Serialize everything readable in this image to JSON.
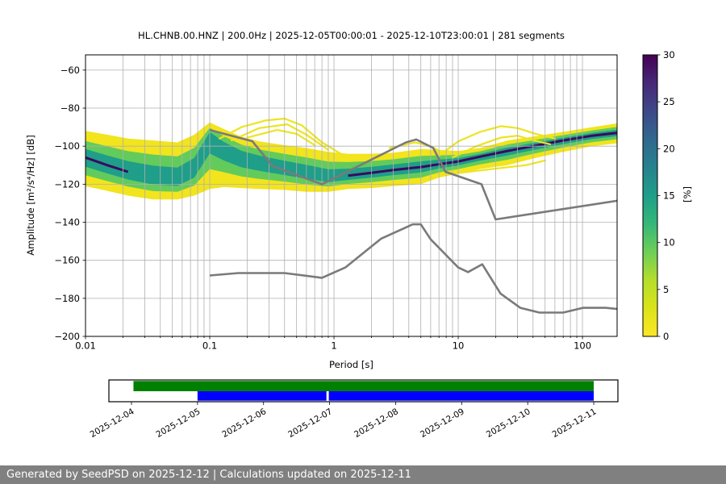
{
  "chart_data": {
    "type": "heatmap",
    "title": "HL.CHNB.00.HNZ | 200.0Hz | 2025-12-05T00:00:01 - 2025-12-10T23:00:01 | 281 segments",
    "xlabel": "Period [s]",
    "ylabel": "Amplitude [m²/s⁴/Hz] [dB]",
    "x_scale": "log",
    "xlim": [
      0.01,
      190
    ],
    "ylim": [
      -200,
      -52
    ],
    "x_ticks": {
      "values": [
        0.01,
        0.1,
        1,
        10,
        100
      ],
      "labels": [
        "0.01",
        "0.1",
        "1",
        "10",
        "100"
      ]
    },
    "y_ticks": [
      -60,
      -80,
      -100,
      -120,
      -140,
      -160,
      -180,
      -200
    ],
    "grid": {
      "show": true,
      "color": "#b0b0b0"
    },
    "colorbar": {
      "label": "[%]",
      "min": 0,
      "max": 30,
      "ticks": [
        0,
        5,
        10,
        15,
        20,
        25,
        30
      ],
      "colormap": "viridis_r",
      "stops": [
        {
          "v": 0,
          "c": "#fde725"
        },
        {
          "v": 3,
          "c": "#dae319"
        },
        {
          "v": 6,
          "c": "#b5de2b"
        },
        {
          "v": 9,
          "c": "#6ece58"
        },
        {
          "v": 12,
          "c": "#35b779"
        },
        {
          "v": 15,
          "c": "#1f9e89"
        },
        {
          "v": 18,
          "c": "#26828e"
        },
        {
          "v": 21,
          "c": "#31688e"
        },
        {
          "v": 24,
          "c": "#3e4989"
        },
        {
          "v": 27,
          "c": "#482878"
        },
        {
          "v": 30,
          "c": "#440154"
        }
      ]
    },
    "ppsd_histogram": {
      "unit": "dB",
      "periods": [
        0.01,
        0.015,
        0.022,
        0.035,
        0.055,
        0.075,
        0.1,
        0.13,
        0.18,
        0.25,
        0.4,
        0.6,
        0.9,
        1.3,
        2,
        3,
        5,
        7,
        10,
        15,
        25,
        40,
        70,
        120,
        190
      ],
      "top_db": [
        -92,
        -94,
        -96,
        -97,
        -98,
        -94,
        -87.5,
        -91,
        -95,
        -97.5,
        -99.5,
        -101,
        -103,
        -104,
        -104,
        -103.5,
        -101.5,
        -102,
        -102.5,
        -101,
        -97,
        -95,
        -92.5,
        -90,
        -88
      ],
      "mode_db": [
        -106,
        -110,
        -113.5,
        -116.5,
        -117.5,
        -112,
        -95,
        -101,
        -106,
        -108.5,
        -111.5,
        -114,
        -116.5,
        -115.5,
        -114,
        -112.5,
        -111,
        -109.5,
        -108,
        -105.5,
        -102.5,
        -100,
        -97,
        -94.5,
        -93
      ],
      "bottom_db": [
        -121,
        -123.5,
        -126,
        -128,
        -128,
        -126,
        -122.5,
        -121.5,
        -122,
        -122.5,
        -123,
        -124,
        -124,
        -122.5,
        -122,
        -121,
        -120,
        -116.5,
        -114.5,
        -112,
        -110,
        -106.5,
        -103,
        -100,
        -98.5
      ],
      "colors": {
        "outer": "#f2e41d",
        "mid": "#62cb5c",
        "inner": "#1f9e89",
        "core": "#3a0a5d"
      },
      "core_segments": [
        [
          0.01,
          0.022
        ],
        [
          1.3,
          190
        ]
      ]
    },
    "excursion_lines": {
      "color": "#ece51f",
      "paths": [
        [
          [
            0.12,
            -96
          ],
          [
            0.18,
            -90
          ],
          [
            0.28,
            -86.5
          ],
          [
            0.4,
            -85.5
          ],
          [
            0.55,
            -89
          ],
          [
            0.8,
            -98
          ],
          [
            1.2,
            -105
          ]
        ],
        [
          [
            0.15,
            -97
          ],
          [
            0.25,
            -90.5
          ],
          [
            0.42,
            -88.5
          ],
          [
            0.6,
            -94
          ],
          [
            0.9,
            -102
          ]
        ],
        [
          [
            0.2,
            -95.5
          ],
          [
            0.35,
            -91.5
          ],
          [
            0.5,
            -93.5
          ],
          [
            0.7,
            -99.5
          ]
        ],
        [
          [
            2.8,
            -101
          ],
          [
            4.5,
            -98
          ],
          [
            6,
            -100
          ],
          [
            7.5,
            -103.5
          ]
        ],
        [
          [
            7,
            -105
          ],
          [
            10,
            -97.5
          ],
          [
            15,
            -92.5
          ],
          [
            22,
            -89.5
          ],
          [
            30,
            -90.5
          ],
          [
            42,
            -93.5
          ],
          [
            60,
            -96
          ]
        ],
        [
          [
            9,
            -106
          ],
          [
            14,
            -100
          ],
          [
            22,
            -95.5
          ],
          [
            30,
            -94.5
          ],
          [
            40,
            -97
          ],
          [
            55,
            -99
          ]
        ],
        [
          [
            9,
            -114.5
          ],
          [
            14,
            -113
          ],
          [
            22,
            -111.5
          ],
          [
            35,
            -110
          ],
          [
            50,
            -107.5
          ]
        ]
      ]
    },
    "noise_models": {
      "color": "#7a7a7a",
      "nhnm": [
        [
          0.1,
          -91.5
        ],
        [
          0.22,
          -97.4
        ],
        [
          0.32,
          -110.5
        ],
        [
          0.8,
          -120
        ],
        [
          3.8,
          -98
        ],
        [
          4.6,
          -96.5
        ],
        [
          6.3,
          -101
        ],
        [
          7.9,
          -113.5
        ],
        [
          15.4,
          -120
        ],
        [
          20,
          -138.5
        ],
        [
          190,
          -128.7
        ]
      ],
      "nlnm": [
        [
          0.1,
          -168
        ],
        [
          0.17,
          -166.7
        ],
        [
          0.4,
          -166.7
        ],
        [
          0.8,
          -169.2
        ],
        [
          1.24,
          -163.7
        ],
        [
          2.4,
          -148.6
        ],
        [
          4.3,
          -141.1
        ],
        [
          5,
          -141.1
        ],
        [
          6,
          -149
        ],
        [
          10,
          -163.8
        ],
        [
          12,
          -166.2
        ],
        [
          15.6,
          -162.1
        ],
        [
          21.9,
          -177.5
        ],
        [
          31.6,
          -185
        ],
        [
          45,
          -187.5
        ],
        [
          70,
          -187.5
        ],
        [
          101,
          -185
        ],
        [
          154,
          -185
        ],
        [
          190,
          -185.6
        ]
      ]
    }
  },
  "timeline": {
    "tick_labels": [
      "2025-12-04",
      "2025-12-05",
      "2025-12-06",
      "2025-12-07",
      "2025-12-08",
      "2025-12-09",
      "2025-12-10",
      "2025-12-11"
    ],
    "day_range": [
      -0.342,
      7.366
    ],
    "bars": [
      {
        "name": "data-coverage",
        "color": "#008000",
        "row": "top",
        "segments": [
          [
            0.03,
            7.0
          ]
        ]
      },
      {
        "name": "psd-coverage",
        "color": "#0000ff",
        "row": "bottom",
        "segments": [
          [
            1.0,
            2.952
          ],
          [
            2.988,
            7.0
          ]
        ]
      }
    ]
  },
  "footer": {
    "text": "Generated by SeedPSD on 2025-12-12 | Calculations updated on 2025-12-11",
    "bg": "#808080",
    "fg": "#ffffff"
  }
}
